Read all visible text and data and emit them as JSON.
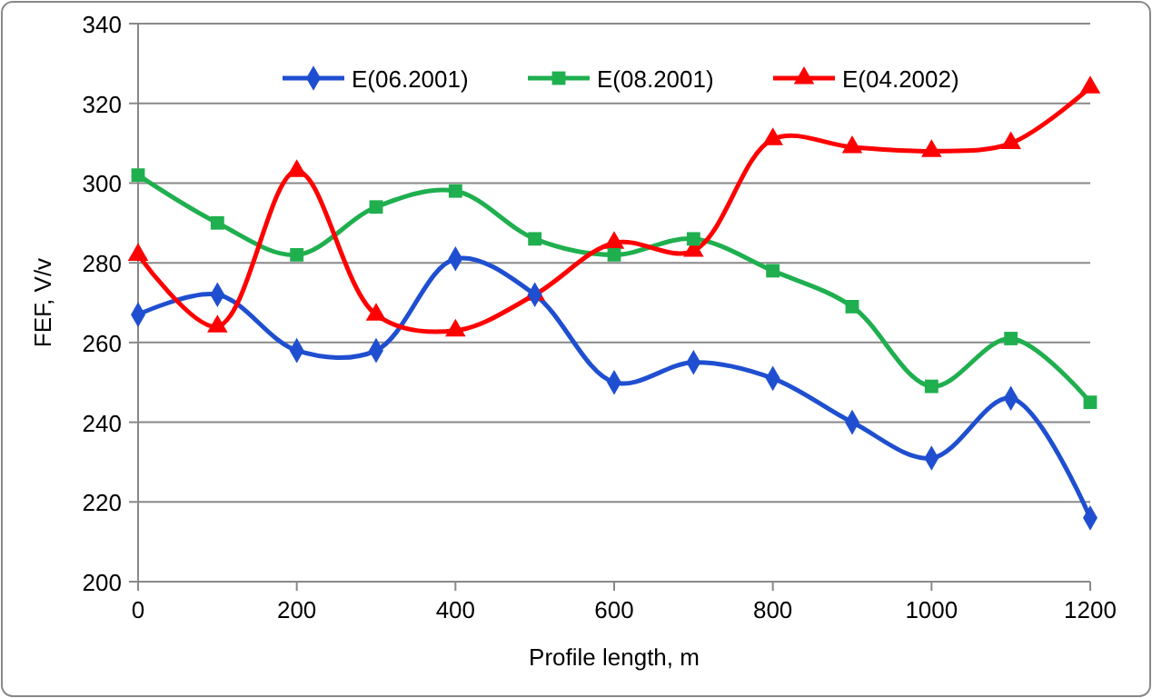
{
  "chart_data": {
    "type": "line",
    "xlabel": "Profile length, m",
    "ylabel": "FEF, V/v",
    "x": [
      0,
      100,
      200,
      300,
      400,
      500,
      600,
      700,
      800,
      900,
      1000,
      1100,
      1200
    ],
    "xlim": [
      0,
      1200
    ],
    "xticks": [
      0,
      200,
      400,
      600,
      800,
      1000,
      1200
    ],
    "ylim": [
      200,
      340
    ],
    "yticks": [
      200,
      220,
      240,
      260,
      280,
      300,
      320,
      340
    ],
    "grid": "y",
    "legend": "top",
    "line_style": "solid",
    "series": [
      {
        "name": "E(06.2001)",
        "color": "#1f4fd0",
        "marker": "diamond",
        "values": [
          267,
          272,
          258,
          258,
          281,
          272,
          250,
          255,
          251,
          240,
          231,
          246,
          216
        ]
      },
      {
        "name": "E(08.2001)",
        "color": "#1faf4f",
        "marker": "square",
        "values": [
          302,
          290,
          282,
          294,
          298,
          286,
          282,
          286,
          278,
          269,
          249,
          261,
          245
        ]
      },
      {
        "name": "E(04.2002)",
        "color": "#ff0000",
        "marker": "triangle",
        "values": [
          282,
          264,
          303,
          267,
          263,
          272,
          285,
          283,
          311,
          309,
          308,
          310,
          324
        ]
      }
    ]
  }
}
